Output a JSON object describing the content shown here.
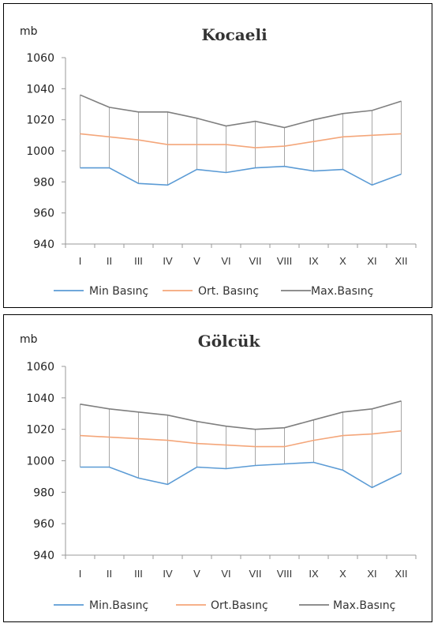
{
  "chart_data": [
    {
      "type": "line",
      "title": "Kocaeli",
      "unit_label": "mb",
      "categories": [
        "I",
        "II",
        "III",
        "IV",
        "V",
        "VI",
        "VII",
        "VIII",
        "IX",
        "X",
        "XI",
        "XII"
      ],
      "ylim": [
        940,
        1060
      ],
      "yticks": [
        "940",
        "960",
        "980",
        "1000",
        "1020",
        "1040",
        "1060"
      ],
      "grid": false,
      "legend_position": "bottom",
      "series": [
        {
          "name": "Min Basınç",
          "color": "#5b9bd5",
          "values": [
            989,
            989,
            979,
            978,
            988,
            986,
            989,
            990,
            987,
            988,
            978,
            985
          ]
        },
        {
          "name": "Ort. Basınç",
          "color": "#f4a67a",
          "values": [
            1011,
            1009,
            1007,
            1004,
            1004,
            1004,
            1002,
            1003,
            1006,
            1009,
            1010,
            1011
          ]
        },
        {
          "name": "Max.Basınç",
          "color": "#7f7f7f",
          "values": [
            1036,
            1028,
            1025,
            1025,
            1021,
            1016,
            1019,
            1015,
            1020,
            1024,
            1026,
            1032
          ]
        }
      ]
    },
    {
      "type": "line",
      "title": "Gölcük",
      "unit_label": "mb",
      "categories": [
        "I",
        "II",
        "III",
        "IV",
        "V",
        "VI",
        "VII",
        "VIII",
        "IX",
        "X",
        "XI",
        "XII"
      ],
      "ylim": [
        940,
        1060
      ],
      "yticks": [
        "940",
        "960",
        "980",
        "1000",
        "1020",
        "1040",
        "1060"
      ],
      "grid": false,
      "legend_position": "bottom",
      "series": [
        {
          "name": "Min.Basınç",
          "color": "#5b9bd5",
          "values": [
            996,
            996,
            989,
            985,
            996,
            995,
            997,
            998,
            999,
            994,
            983,
            992
          ]
        },
        {
          "name": "Ort.Basınç",
          "color": "#f4a67a",
          "values": [
            1016,
            1015,
            1014,
            1013,
            1011,
            1010,
            1009,
            1009,
            1013,
            1016,
            1017,
            1019
          ]
        },
        {
          "name": "Max.Basınç",
          "color": "#7f7f7f",
          "values": [
            1036,
            1033,
            1031,
            1029,
            1025,
            1022,
            1020,
            1021,
            1026,
            1031,
            1033,
            1038
          ]
        }
      ]
    }
  ]
}
